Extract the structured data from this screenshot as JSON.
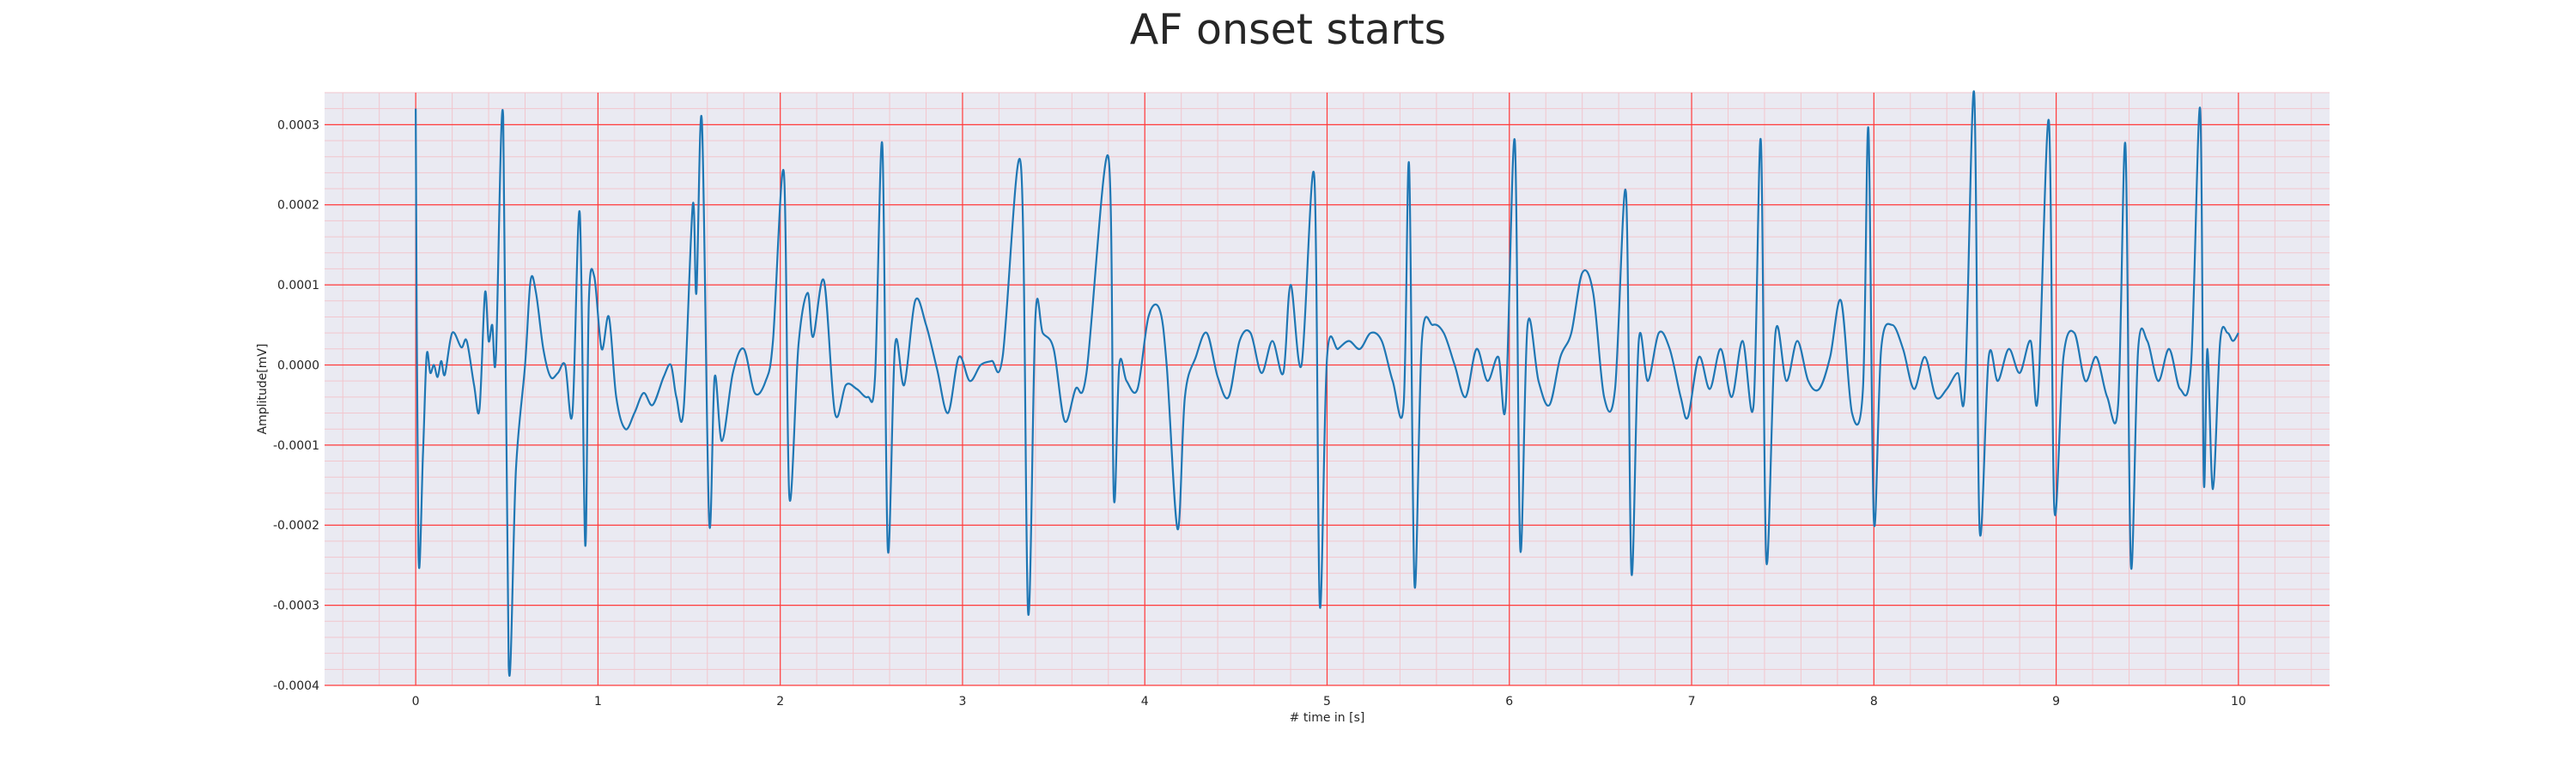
{
  "chart_data": {
    "type": "line",
    "title": "AF onset starts",
    "xlabel": "# time in [s]",
    "ylabel": "Amplitude[mV]",
    "xlim": [
      -0.5,
      10.5
    ],
    "ylim": [
      -0.0004,
      0.00034
    ],
    "x_ticks": [
      0,
      1,
      2,
      3,
      4,
      5,
      6,
      7,
      8,
      9,
      10
    ],
    "x_tick_labels": [
      "0",
      "1",
      "2",
      "3",
      "4",
      "5",
      "6",
      "7",
      "8",
      "9",
      "10"
    ],
    "y_ticks": [
      -0.0004,
      -0.0003,
      -0.0002,
      -0.0001,
      0.0,
      0.0001,
      0.0002,
      0.0003
    ],
    "y_tick_labels": [
      "-0.0004",
      "-0.0003",
      "-0.0002",
      "-0.0001",
      "0.0000",
      "0.0001",
      "0.0002",
      "0.0003"
    ],
    "grid": true,
    "minor_grid": true,
    "colors": {
      "line": "#1f77b4",
      "plot_background": "#eaeaf2",
      "major_grid": "#ff3b3b",
      "minor_grid": "#f2c6cd"
    },
    "series": [
      {
        "name": "",
        "points": [
          [
            0.0,
            0.00032
          ],
          [
            0.015,
            -0.000235
          ],
          [
            0.04,
            -0.00011
          ],
          [
            0.06,
            1.2e-05
          ],
          [
            0.08,
            -1e-05
          ],
          [
            0.1,
            0.0
          ],
          [
            0.12,
            -1.5e-05
          ],
          [
            0.14,
            5e-06
          ],
          [
            0.16,
            -1.2e-05
          ],
          [
            0.2,
            4e-05
          ],
          [
            0.25,
            2.2e-05
          ],
          [
            0.28,
            3e-05
          ],
          [
            0.32,
            -2.5e-05
          ],
          [
            0.35,
            -5.5e-05
          ],
          [
            0.38,
            9e-05
          ],
          [
            0.4,
            3e-05
          ],
          [
            0.42,
            5e-05
          ],
          [
            0.44,
            1e-05
          ],
          [
            0.48,
            0.00031
          ],
          [
            0.51,
            -0.000375
          ],
          [
            0.55,
            -0.00013
          ],
          [
            0.6,
            0.0
          ],
          [
            0.63,
            0.000105
          ],
          [
            0.66,
            9e-05
          ],
          [
            0.7,
            2e-05
          ],
          [
            0.74,
            -1.5e-05
          ],
          [
            0.78,
            -1e-05
          ],
          [
            0.82,
            0.0
          ],
          [
            0.86,
            -6e-05
          ],
          [
            0.9,
            0.00019
          ],
          [
            0.93,
            -0.000225
          ],
          [
            0.95,
            8e-05
          ],
          [
            0.98,
            0.00011
          ],
          [
            1.02,
            2e-05
          ],
          [
            1.06,
            6e-05
          ],
          [
            1.1,
            -4e-05
          ],
          [
            1.15,
            -8e-05
          ],
          [
            1.2,
            -6e-05
          ],
          [
            1.25,
            -3.5e-05
          ],
          [
            1.3,
            -5e-05
          ],
          [
            1.36,
            -1.5e-05
          ],
          [
            1.4,
            0.0
          ],
          [
            1.43,
            -4e-05
          ],
          [
            1.47,
            -5.5e-05
          ],
          [
            1.52,
            0.0002
          ],
          [
            1.54,
            9e-05
          ],
          [
            1.57,
            0.000305
          ],
          [
            1.61,
            -0.000195
          ],
          [
            1.64,
            -1.5e-05
          ],
          [
            1.68,
            -9.5e-05
          ],
          [
            1.74,
            -1e-05
          ],
          [
            1.8,
            2e-05
          ],
          [
            1.86,
            -3.5e-05
          ],
          [
            1.92,
            -2e-05
          ],
          [
            1.96,
            3e-05
          ],
          [
            2.02,
            0.00024
          ],
          [
            2.05,
            -0.000165
          ],
          [
            2.1,
            2.5e-05
          ],
          [
            2.15,
            9e-05
          ],
          [
            2.18,
            3.5e-05
          ],
          [
            2.24,
            0.000105
          ],
          [
            2.3,
            -6e-05
          ],
          [
            2.36,
            -2.5e-05
          ],
          [
            2.42,
            -3e-05
          ],
          [
            2.48,
            -4e-05
          ],
          [
            2.52,
            -1.5e-05
          ],
          [
            2.56,
            0.000275
          ],
          [
            2.59,
            -0.00023
          ],
          [
            2.63,
            2.5e-05
          ],
          [
            2.68,
            -2.5e-05
          ],
          [
            2.74,
            8e-05
          ],
          [
            2.8,
            5e-05
          ],
          [
            2.86,
            -5e-06
          ],
          [
            2.92,
            -6e-05
          ],
          [
            2.98,
            1e-05
          ],
          [
            3.04,
            -2e-05
          ],
          [
            3.1,
            0.0
          ],
          [
            3.16,
            5e-06
          ],
          [
            3.22,
            1e-05
          ],
          [
            3.32,
            0.00025
          ],
          [
            3.36,
            -0.00031
          ],
          [
            3.4,
            6e-05
          ],
          [
            3.44,
            4e-05
          ],
          [
            3.5,
            2e-05
          ],
          [
            3.56,
            -7e-05
          ],
          [
            3.62,
            -3e-05
          ],
          [
            3.68,
            -1e-05
          ],
          [
            3.8,
            0.00026
          ],
          [
            3.83,
            -0.000165
          ],
          [
            3.86,
            0.0
          ],
          [
            3.9,
            -2e-05
          ],
          [
            3.96,
            -3e-05
          ],
          [
            4.02,
            6e-05
          ],
          [
            4.08,
            7e-05
          ],
          [
            4.12,
            0.0
          ],
          [
            4.18,
            -0.000205
          ],
          [
            4.22,
            -4e-05
          ],
          [
            4.28,
            1e-05
          ],
          [
            4.34,
            4e-05
          ],
          [
            4.4,
            -1.5e-05
          ],
          [
            4.46,
            -4e-05
          ],
          [
            4.52,
            3e-05
          ],
          [
            4.58,
            4e-05
          ],
          [
            4.64,
            -1e-05
          ],
          [
            4.7,
            3e-05
          ],
          [
            4.76,
            -1e-05
          ],
          [
            4.8,
            0.0001
          ],
          [
            4.86,
            0.0
          ],
          [
            4.93,
            0.000235
          ],
          [
            4.96,
            -0.0003
          ],
          [
            5.0,
            1e-05
          ],
          [
            5.06,
            2e-05
          ],
          [
            5.12,
            3e-05
          ],
          [
            5.18,
            2e-05
          ],
          [
            5.24,
            4e-05
          ],
          [
            5.3,
            3e-05
          ],
          [
            5.36,
            -2e-05
          ],
          [
            5.42,
            -5e-05
          ],
          [
            5.45,
            0.00025
          ],
          [
            5.48,
            -0.000275
          ],
          [
            5.52,
            3e-05
          ],
          [
            5.58,
            5e-05
          ],
          [
            5.64,
            4e-05
          ],
          [
            5.7,
            0.0
          ],
          [
            5.76,
            -4e-05
          ],
          [
            5.82,
            2e-05
          ],
          [
            5.88,
            -2e-05
          ],
          [
            5.94,
            1e-05
          ],
          [
            5.98,
            -5e-05
          ],
          [
            6.03,
            0.00028
          ],
          [
            6.06,
            -0.00023
          ],
          [
            6.1,
            5e-05
          ],
          [
            6.16,
            -2e-05
          ],
          [
            6.22,
            -5e-05
          ],
          [
            6.28,
            1e-05
          ],
          [
            6.34,
            4e-05
          ],
          [
            6.4,
            0.000115
          ],
          [
            6.46,
            9e-05
          ],
          [
            6.52,
            -4e-05
          ],
          [
            6.58,
            -3e-05
          ],
          [
            6.64,
            0.000215
          ],
          [
            6.67,
            -0.00026
          ],
          [
            6.71,
            3e-05
          ],
          [
            6.76,
            -2e-05
          ],
          [
            6.82,
            4e-05
          ],
          [
            6.88,
            2e-05
          ],
          [
            6.94,
            -4e-05
          ],
          [
            6.98,
            -6.5e-05
          ],
          [
            7.04,
            1e-05
          ],
          [
            7.1,
            -3e-05
          ],
          [
            7.16,
            2e-05
          ],
          [
            7.22,
            -4e-05
          ],
          [
            7.28,
            3e-05
          ],
          [
            7.34,
            -5e-05
          ],
          [
            7.38,
            0.00028
          ],
          [
            7.41,
            -0.000245
          ],
          [
            7.46,
            4e-05
          ],
          [
            7.52,
            -2e-05
          ],
          [
            7.58,
            3e-05
          ],
          [
            7.64,
            -2e-05
          ],
          [
            7.7,
            -3e-05
          ],
          [
            7.76,
            1e-05
          ],
          [
            7.82,
            8e-05
          ],
          [
            7.88,
            -6e-05
          ],
          [
            7.94,
            -3e-05
          ],
          [
            7.97,
            0.000295
          ],
          [
            8.0,
            -0.000195
          ],
          [
            8.04,
            2e-05
          ],
          [
            8.1,
            5e-05
          ],
          [
            8.16,
            2e-05
          ],
          [
            8.22,
            -3e-05
          ],
          [
            8.28,
            1e-05
          ],
          [
            8.34,
            -4e-05
          ],
          [
            8.4,
            -3e-05
          ],
          [
            8.46,
            -1e-05
          ],
          [
            8.5,
            -3e-05
          ],
          [
            8.55,
            0.00034
          ],
          [
            8.58,
            -0.000205
          ],
          [
            8.63,
            1e-05
          ],
          [
            8.68,
            -2e-05
          ],
          [
            8.74,
            2e-05
          ],
          [
            8.8,
            -1e-05
          ],
          [
            8.86,
            3e-05
          ],
          [
            8.9,
            -4e-05
          ],
          [
            8.96,
            0.000305
          ],
          [
            8.99,
            -0.00018
          ],
          [
            9.04,
            1e-05
          ],
          [
            9.1,
            4e-05
          ],
          [
            9.16,
            -2e-05
          ],
          [
            9.22,
            1e-05
          ],
          [
            9.28,
            -4e-05
          ],
          [
            9.34,
            -5e-05
          ],
          [
            9.38,
            0.000275
          ],
          [
            9.41,
            -0.00025
          ],
          [
            9.45,
            2e-05
          ],
          [
            9.5,
            3e-05
          ],
          [
            9.56,
            -2e-05
          ],
          [
            9.62,
            2e-05
          ],
          [
            9.68,
            -3e-05
          ],
          [
            9.74,
            0.0
          ],
          [
            9.79,
            0.00032
          ],
          [
            9.81,
            -0.000145
          ],
          [
            9.83,
            2e-05
          ],
          [
            9.86,
            -0.000155
          ],
          [
            9.9,
            3e-05
          ],
          [
            9.94,
            4e-05
          ],
          [
            9.97,
            3e-05
          ],
          [
            10.0,
            4e-05
          ]
        ]
      }
    ]
  }
}
